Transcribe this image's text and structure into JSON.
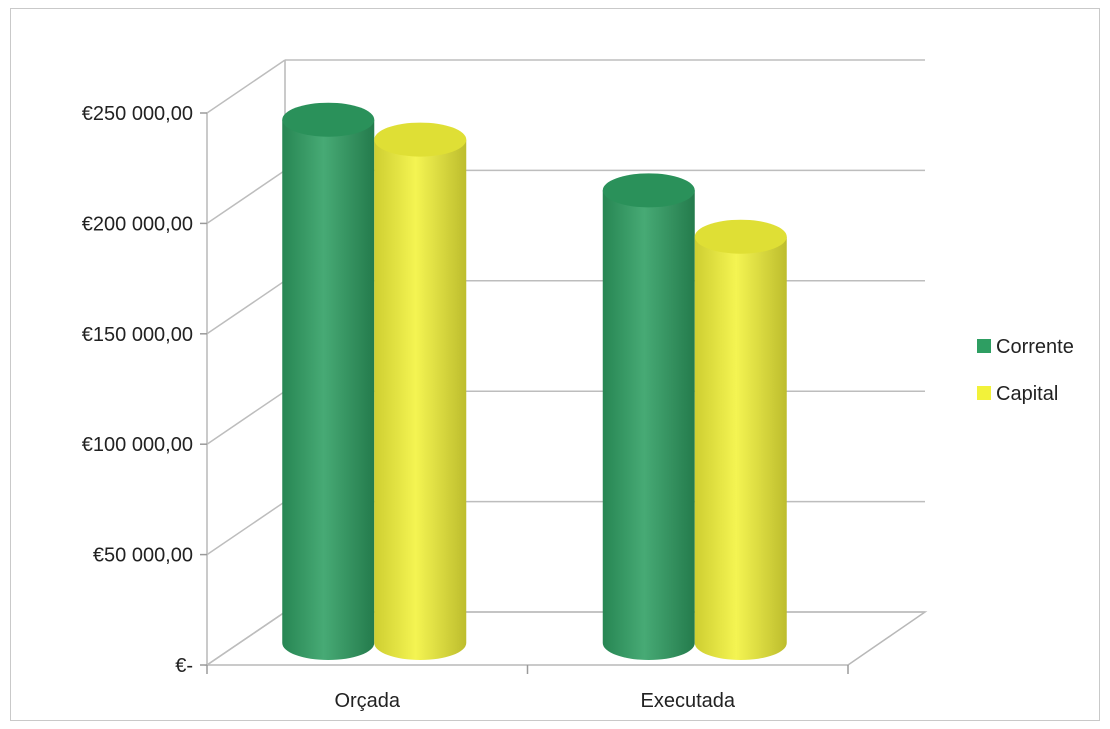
{
  "chart_data": {
    "type": "bar",
    "style": "3d-cylinder",
    "categories": [
      "Orçada",
      "Executada"
    ],
    "series": [
      {
        "name": "Corrente",
        "color": "#2e9e62",
        "values": [
          237000,
          205000
        ]
      },
      {
        "name": "Capital",
        "color": "#f2f23a",
        "values": [
          228000,
          184000
        ]
      }
    ],
    "ylim": [
      0,
      250000
    ],
    "y_ticks": [
      0,
      50000,
      100000,
      150000,
      200000,
      250000
    ],
    "y_tick_labels": [
      "€-",
      "€50 000,00",
      "€100 000,00",
      "€150 000,00",
      "€200 000,00",
      "€250 000,00"
    ],
    "grid": true,
    "legend_position": "right",
    "title": "",
    "xlabel": "",
    "ylabel": ""
  }
}
